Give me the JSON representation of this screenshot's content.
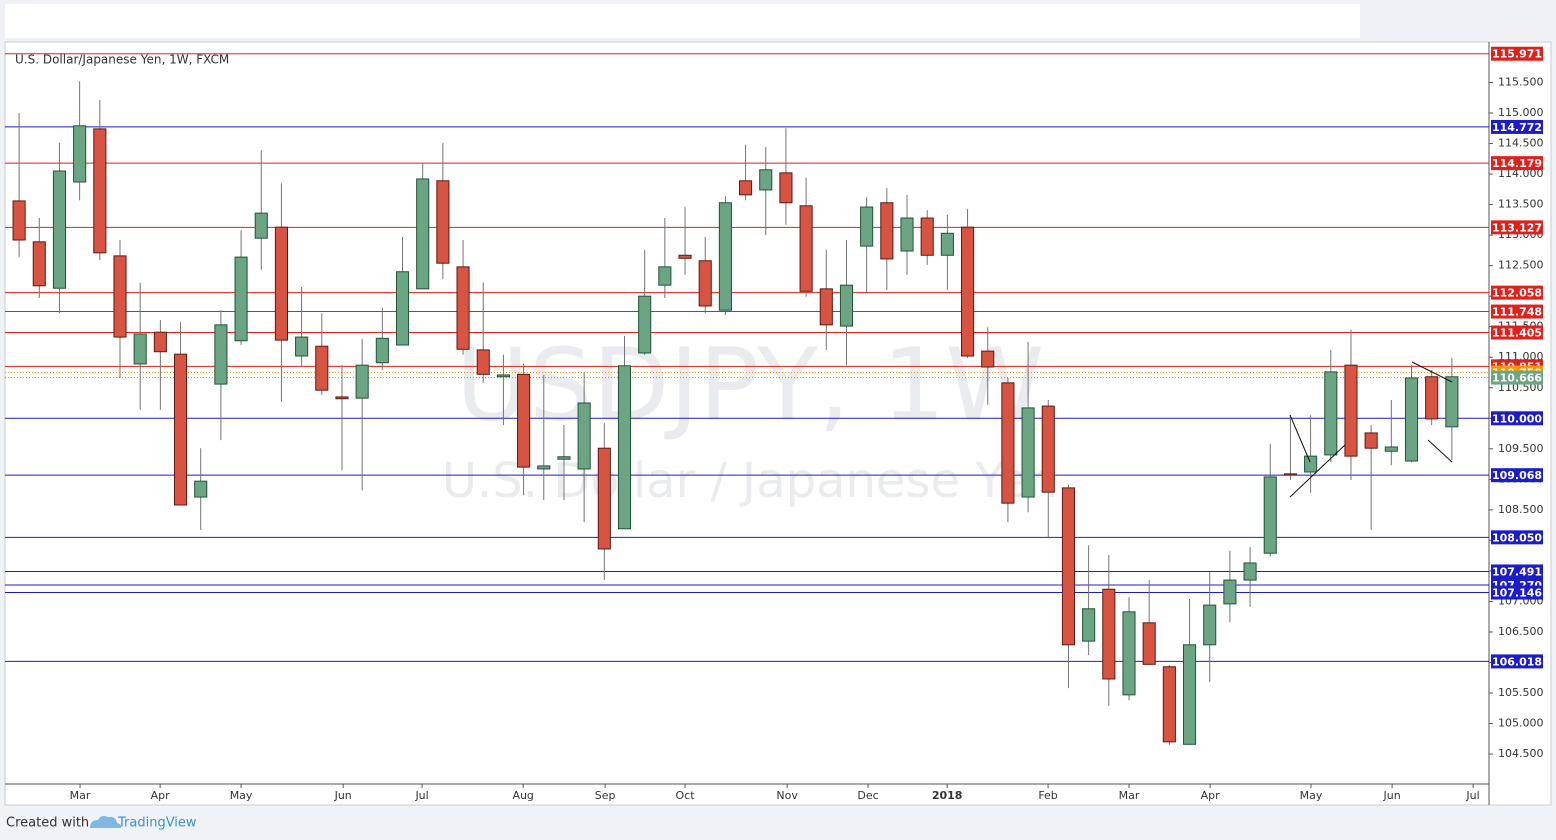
{
  "chart_data": {
    "type": "candlestick",
    "title": "U.S. Dollar/Japanese Yen, 1W, FXCM",
    "watermark": "USDJPY, 1W",
    "watermark_subtitle": "U.S. Dollar / Japanese Yen",
    "footer_text": "Created with",
    "footer_brand": "TradingView",
    "up_color": "#6ba583",
    "up_border": "#225437",
    "down_color": "#d75442",
    "down_border": "#5b1a13",
    "wick_color": "#737375",
    "open": [
      113.56,
      112.89,
      112.13,
      113.87,
      114.74,
      112.66,
      110.89,
      111.41,
      111.05,
      108.71,
      110.56,
      111.27,
      112.95,
      113.13,
      111.02,
      111.18,
      110.35,
      110.33,
      110.91,
      111.2,
      112.12,
      113.89,
      112.48,
      111.12,
      110.68,
      110.72,
      109.17,
      109.33,
      109.17,
      109.51,
      108.19,
      111.07,
      112.18,
      112.67,
      112.58,
      111.77,
      113.89,
      113.74,
      114.02,
      113.48,
      112.12,
      111.51,
      112.82,
      113.53,
      112.74,
      113.28,
      112.67,
      113.13,
      111.1,
      110.58,
      108.71,
      110.2,
      108.86,
      106.35,
      107.2,
      105.47,
      106.65,
      105.93,
      104.66,
      106.29,
      106.96,
      107.35,
      107.79,
      109.09,
      109.12,
      109.4,
      110.87,
      109.76,
      109.46,
      109.3,
      110.68,
      109.86
    ],
    "high": [
      115.0,
      113.28,
      114.51,
      115.52,
      115.21,
      112.92,
      112.22,
      111.61,
      111.58,
      109.51,
      111.77,
      113.08,
      114.39,
      113.85,
      112.15,
      111.72,
      110.87,
      111.3,
      111.81,
      112.97,
      114.18,
      114.51,
      112.92,
      112.22,
      111.04,
      110.9,
      110.71,
      109.89,
      110.76,
      109.92,
      111.35,
      112.76,
      113.28,
      113.46,
      112.97,
      113.64,
      114.48,
      114.44,
      114.75,
      113.94,
      112.76,
      112.92,
      113.62,
      113.77,
      113.66,
      113.41,
      113.33,
      113.43,
      111.49,
      110.66,
      111.25,
      110.3,
      108.91,
      107.92,
      107.76,
      107.07,
      107.35,
      105.96,
      107.04,
      107.48,
      107.83,
      107.89,
      109.58,
      110.05,
      110.05,
      111.12,
      111.45,
      109.89,
      110.3,
      110.87,
      110.79,
      110.99
    ],
    "low": [
      112.64,
      111.97,
      111.72,
      113.57,
      112.59,
      110.66,
      110.14,
      110.14,
      108.58,
      108.17,
      109.64,
      111.2,
      112.43,
      110.27,
      110.84,
      110.38,
      109.15,
      108.82,
      110.79,
      111.2,
      112.12,
      112.28,
      111.04,
      110.58,
      109.89,
      108.74,
      108.66,
      108.66,
      108.3,
      107.35,
      108.19,
      111.04,
      111.97,
      112.35,
      111.72,
      111.69,
      113.57,
      113.0,
      113.17,
      111.99,
      111.12,
      110.87,
      112.05,
      112.1,
      112.35,
      112.51,
      112.1,
      110.99,
      110.22,
      108.3,
      108.46,
      108.05,
      105.58,
      106.12,
      105.29,
      105.38,
      105.96,
      104.65,
      104.66,
      105.68,
      106.66,
      106.91,
      107.73,
      108.99,
      108.78,
      109.28,
      108.99,
      108.17,
      109.23,
      109.28,
      109.89,
      109.32
    ],
    "close": [
      112.92,
      112.17,
      114.05,
      114.79,
      112.71,
      111.33,
      111.38,
      111.09,
      108.58,
      108.97,
      111.53,
      112.64,
      113.36,
      111.28,
      111.33,
      110.46,
      110.32,
      110.87,
      111.31,
      112.4,
      113.92,
      112.54,
      111.13,
      110.72,
      110.71,
      109.2,
      109.22,
      109.37,
      110.25,
      107.86,
      110.86,
      112.0,
      112.48,
      112.62,
      111.84,
      113.53,
      113.66,
      114.07,
      113.53,
      112.08,
      111.53,
      112.18,
      113.46,
      112.61,
      113.28,
      112.67,
      113.03,
      111.02,
      110.84,
      108.61,
      110.17,
      108.79,
      106.29,
      106.88,
      105.73,
      106.83,
      105.97,
      104.7,
      106.29,
      106.94,
      107.35,
      107.63,
      109.04,
      109.07,
      109.38,
      110.76,
      109.38,
      109.51,
      109.53,
      110.66,
      109.99,
      110.68
    ],
    "xlim": [
      -0.55,
      72.84
    ],
    "xticks": [
      {
        "value": 3.02,
        "label": "Mar"
      },
      {
        "value": 6.99,
        "label": "Apr"
      },
      {
        "value": 11.0,
        "label": "May"
      },
      {
        "value": 16.06,
        "label": "Jun"
      },
      {
        "value": 19.97,
        "label": "Jul"
      },
      {
        "value": 24.98,
        "label": "Aug"
      },
      {
        "value": 29.04,
        "label": "Sep"
      },
      {
        "value": 33.0,
        "label": "Oct"
      },
      {
        "value": 38.06,
        "label": "Nov"
      },
      {
        "value": 42.07,
        "label": "Dec"
      },
      {
        "value": 45.99,
        "label": "2018"
      },
      {
        "value": 50.99,
        "label": "Feb"
      },
      {
        "value": 55.0,
        "label": "Mar"
      },
      {
        "value": 59.02,
        "label": "Apr"
      },
      {
        "value": 64.02,
        "label": "May"
      },
      {
        "value": 68.04,
        "label": "Jun"
      },
      {
        "value": 72.05,
        "label": "Jul"
      }
    ],
    "ylim": [
      104.01,
      116.163
    ],
    "yticks": [
      {
        "value": 104.5,
        "label": "104.500"
      },
      {
        "value": 105,
        "label": "105.000"
      },
      {
        "value": 105.5,
        "label": "105.500"
      },
      {
        "value": 106,
        "label": "106.000"
      },
      {
        "value": 106.5,
        "label": "106.500"
      },
      {
        "value": 107,
        "label": "107.000"
      },
      {
        "value": 107.5,
        "label": "107.500"
      },
      {
        "value": 108,
        "label": "108.000"
      },
      {
        "value": 108.5,
        "label": "108.500"
      },
      {
        "value": 109,
        "label": "109.000"
      },
      {
        "value": 109.5,
        "label": "109.500"
      },
      {
        "value": 110,
        "label": "110.000"
      },
      {
        "value": 110.5,
        "label": "110.500"
      },
      {
        "value": 111,
        "label": "111.000"
      },
      {
        "value": 111.5,
        "label": "111.500"
      },
      {
        "value": 112,
        "label": "112.000"
      },
      {
        "value": 112.5,
        "label": "112.500"
      },
      {
        "value": 113,
        "label": "113.000"
      },
      {
        "value": 113.5,
        "label": "113.500"
      },
      {
        "value": 114,
        "label": "114.000"
      },
      {
        "value": 114.5,
        "label": "114.500"
      },
      {
        "value": 115,
        "label": "115.000"
      },
      {
        "value": 115.5,
        "label": "115.500"
      }
    ],
    "levels": [
      {
        "value": 115.971,
        "label": "115.971",
        "color": "#e0201b",
        "style": "solid"
      },
      {
        "value": 114.772,
        "label": "114.772",
        "color": "#1c1cc8",
        "style": "solid"
      },
      {
        "value": 114.179,
        "label": "114.179",
        "color": "#e0201b",
        "style": "solid"
      },
      {
        "value": 113.127,
        "label": "113.127",
        "color": "#e0201b",
        "style": "solid"
      },
      {
        "value": 112.058,
        "label": "112.058",
        "color": "#e0201b",
        "style": "solid"
      },
      {
        "value": 111.748,
        "label": "111.748",
        "color": "#e0201b",
        "style": "solid"
      },
      {
        "value": 111.405,
        "label": "111.405",
        "color": "#e0201b",
        "style": "solid"
      },
      {
        "value": 110.851,
        "label": "110.851",
        "color": "#e0201b",
        "style": "solid"
      },
      {
        "value": 110.75,
        "label": "110.750",
        "color": "#ff9800",
        "style": "dotted"
      },
      {
        "value": 110.666,
        "label": "110.666",
        "color": "#6ba583",
        "style": "dotted"
      },
      {
        "value": 110.0,
        "label": "110.000",
        "color": "#1c1cc8",
        "style": "solid"
      },
      {
        "value": 109.068,
        "label": "109.068",
        "color": "#1c1cc8",
        "style": "solid"
      },
      {
        "value": 108.05,
        "label": "108.050",
        "color": "#1c1cc8",
        "style": "solid"
      },
      {
        "value": 107.491,
        "label": "107.491",
        "color": "#1c1cc8",
        "style": "solid"
      },
      {
        "value": 107.27,
        "label": "107.270",
        "color": "#1c1cc8",
        "style": "solid"
      },
      {
        "value": 107.146,
        "label": "107.146",
        "color": "#1c1cc8",
        "style": "solid"
      },
      {
        "value": 106.018,
        "label": "106.018",
        "color": "#1c1cc8",
        "style": "solid"
      }
    ]
  }
}
